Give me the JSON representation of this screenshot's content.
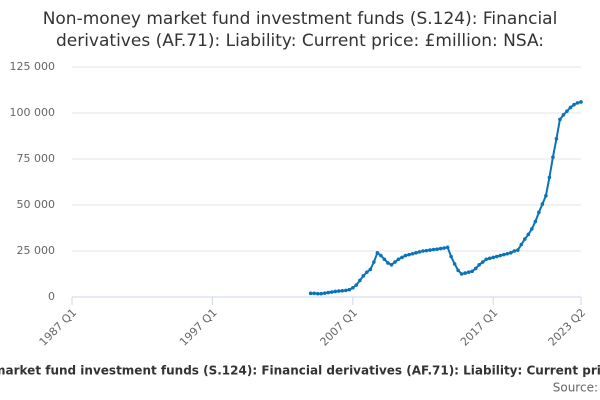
{
  "chart_data": {
    "type": "line",
    "title": [
      "Non-money market fund investment funds (S.124): Financial",
      "derivatives (AF.71): Liability: Current price: £million: NSA:"
    ],
    "caption": "market fund investment funds (S.124): Financial derivatives (AF.71): Liability: Current pri",
    "source": "Source:",
    "categories": [
      "1987 Q1",
      null,
      null,
      null,
      null,
      null,
      null,
      null,
      null,
      null,
      null,
      null,
      null,
      null,
      null,
      null,
      null,
      null,
      null,
      null,
      null,
      null,
      null,
      null,
      null,
      null,
      null,
      null,
      null,
      null,
      null,
      null,
      null,
      null,
      null,
      null,
      null,
      null,
      null,
      null,
      "1997 Q1",
      null,
      null,
      null,
      null,
      null,
      null,
      null,
      null,
      null,
      null,
      null,
      null,
      null,
      null,
      null,
      null,
      null,
      null,
      null,
      null,
      null,
      null,
      null,
      null,
      null,
      null,
      null,
      null,
      null,
      null,
      null,
      null,
      null,
      null,
      null,
      null,
      null,
      null,
      null,
      "2007 Q1",
      null,
      null,
      null,
      null,
      null,
      null,
      null,
      null,
      null,
      null,
      null,
      null,
      null,
      null,
      null,
      null,
      null,
      null,
      null,
      null,
      null,
      null,
      null,
      null,
      null,
      null,
      null,
      null,
      null,
      null,
      null,
      null,
      null,
      null,
      null,
      null,
      null,
      null,
      null,
      "2017 Q1",
      null,
      null,
      null,
      null,
      null,
      null,
      null,
      null,
      null,
      null,
      null,
      null,
      null,
      null,
      null,
      null,
      null,
      null,
      null,
      null,
      null,
      null,
      null,
      null,
      "2023 Q2"
    ],
    "series": [
      {
        "name": "Liability",
        "color": "#0b73b7",
        "values": [
          null,
          null,
          null,
          null,
          null,
          null,
          null,
          null,
          null,
          null,
          null,
          null,
          null,
          null,
          null,
          null,
          null,
          null,
          null,
          null,
          null,
          null,
          null,
          null,
          null,
          null,
          null,
          null,
          null,
          null,
          null,
          null,
          null,
          null,
          null,
          null,
          null,
          null,
          null,
          null,
          null,
          null,
          null,
          null,
          null,
          null,
          null,
          null,
          null,
          null,
          null,
          null,
          null,
          null,
          null,
          null,
          null,
          null,
          null,
          null,
          null,
          null,
          null,
          null,
          null,
          null,
          null,
          null,
          2000,
          2000,
          1800,
          1800,
          2100,
          2400,
          2700,
          3000,
          3200,
          3400,
          3600,
          4000,
          5000,
          6500,
          9000,
          11500,
          13500,
          15000,
          19000,
          24000,
          22500,
          20500,
          18500,
          17500,
          19000,
          20500,
          21500,
          22500,
          23000,
          23500,
          24000,
          24500,
          25000,
          25200,
          25500,
          25800,
          26000,
          26300,
          26600,
          27000,
          22000,
          18000,
          14500,
          12500,
          13000,
          13500,
          14000,
          15500,
          17500,
          19000,
          20500,
          21000,
          21500,
          22000,
          22500,
          23000,
          23500,
          24000,
          25000,
          25500,
          28500,
          31500,
          34000,
          37000,
          41000,
          46000,
          50500,
          55000,
          65000,
          76000,
          86000,
          96500,
          99000,
          101000,
          103000,
          104500,
          105500,
          106000
        ]
      }
    ],
    "ylim": [
      0,
      125000
    ],
    "yticks": [
      0,
      {
        "value": 25000,
        "label": "25 000"
      },
      {
        "value": 50000,
        "label": "50 000"
      },
      {
        "value": 75000,
        "label": "75 000"
      },
      {
        "value": 100000,
        "label": "100 000"
      },
      {
        "value": 125000,
        "label": "125 000"
      }
    ],
    "grid": true
  }
}
